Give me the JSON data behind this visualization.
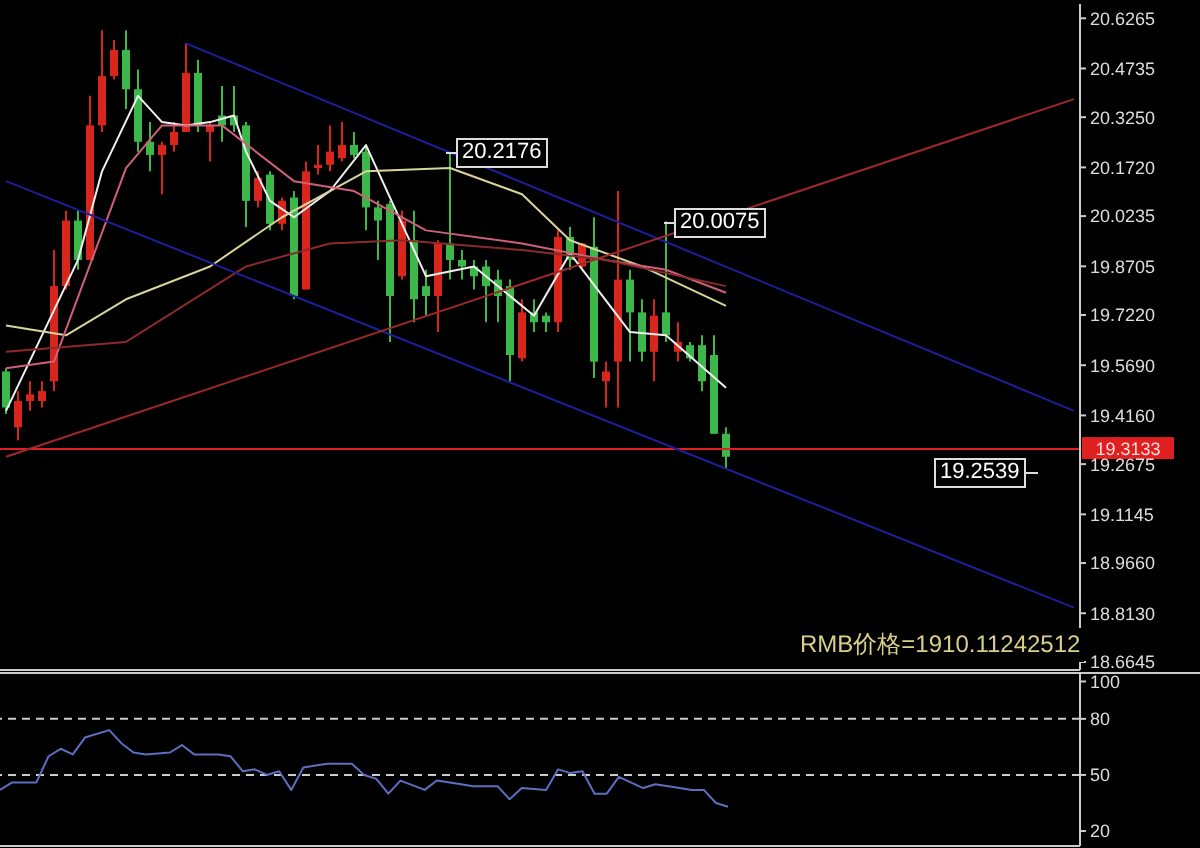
{
  "chart_data": [
    {
      "type": "candlestick",
      "categories": [
        null,
        null,
        null,
        null,
        null,
        null,
        null,
        null,
        null,
        null,
        null,
        null,
        null,
        null,
        null,
        null,
        null,
        null,
        null,
        null,
        null,
        null,
        null,
        null,
        null,
        null,
        null,
        null,
        null,
        null,
        null,
        null,
        null,
        null,
        null,
        null,
        null,
        null,
        null,
        null,
        null,
        null,
        null,
        null,
        null,
        null,
        null,
        null,
        null,
        null,
        null,
        null,
        null,
        null,
        null,
        null,
        null,
        null,
        null,
        null,
        null,
        null,
        null,
        null,
        null,
        null,
        null,
        null,
        null,
        null,
        null,
        null,
        null,
        null,
        null,
        null,
        null,
        null,
        null,
        null,
        null,
        null,
        null,
        null,
        null,
        null,
        null,
        null,
        null,
        null
      ],
      "ohlc": [
        [
          19.55,
          19.56,
          19.42,
          19.44
        ],
        [
          19.38,
          19.49,
          19.34,
          19.46
        ],
        [
          19.46,
          19.52,
          19.43,
          19.48
        ],
        [
          19.46,
          19.52,
          19.44,
          19.49
        ],
        [
          19.52,
          19.92,
          19.49,
          19.81
        ],
        [
          19.81,
          20.04,
          19.8,
          20.01
        ],
        [
          20.01,
          20.04,
          19.86,
          19.89
        ],
        [
          19.89,
          20.39,
          19.89,
          20.3
        ],
        [
          20.3,
          20.59,
          20.28,
          20.45
        ],
        [
          20.45,
          20.56,
          20.44,
          20.53
        ],
        [
          20.53,
          20.59,
          20.35,
          20.41
        ],
        [
          20.41,
          20.47,
          20.22,
          20.25
        ],
        [
          20.25,
          20.31,
          20.16,
          20.21
        ],
        [
          20.21,
          20.25,
          20.09,
          20.24
        ],
        [
          20.24,
          20.31,
          20.22,
          20.28
        ],
        [
          20.28,
          20.55,
          20.28,
          20.46
        ],
        [
          20.46,
          20.5,
          20.28,
          20.3
        ],
        [
          20.28,
          20.31,
          20.19,
          20.3
        ],
        [
          20.33,
          20.42,
          20.25,
          20.3
        ],
        [
          20.33,
          20.42,
          20.28,
          20.3
        ],
        [
          20.3,
          20.31,
          19.99,
          20.07
        ],
        [
          20.07,
          20.16,
          20.05,
          20.14
        ],
        [
          20.15,
          20.16,
          19.98,
          20.0
        ],
        [
          20.0,
          20.08,
          19.98,
          20.07
        ],
        [
          20.08,
          20.1,
          19.77,
          19.78
        ],
        [
          19.8,
          20.19,
          19.8,
          20.16
        ],
        [
          20.17,
          20.24,
          20.15,
          20.18
        ],
        [
          20.18,
          20.3,
          20.16,
          20.22
        ],
        [
          20.2,
          20.31,
          20.19,
          20.24
        ],
        [
          20.24,
          20.28,
          20.2,
          20.21
        ],
        [
          20.22,
          20.24,
          19.98,
          20.05
        ],
        [
          20.05,
          20.07,
          19.89,
          20.01
        ],
        [
          20.06,
          20.07,
          19.64,
          19.78
        ],
        [
          19.84,
          20.04,
          19.83,
          20.01
        ],
        [
          19.95,
          20.04,
          19.7,
          19.77
        ],
        [
          19.81,
          19.86,
          19.72,
          19.78
        ],
        [
          19.78,
          19.95,
          19.67,
          19.94
        ],
        [
          19.94,
          20.2176,
          19.83,
          19.89
        ],
        [
          19.89,
          19.92,
          19.83,
          19.87
        ],
        [
          19.87,
          19.89,
          19.8,
          19.84
        ],
        [
          19.87,
          19.89,
          19.7,
          19.81
        ],
        [
          19.83,
          19.86,
          19.7,
          19.78
        ],
        [
          19.81,
          19.83,
          19.52,
          19.6
        ],
        [
          19.59,
          19.77,
          19.58,
          19.73
        ],
        [
          19.73,
          19.77,
          19.67,
          19.7
        ],
        [
          19.72,
          19.73,
          19.67,
          19.7
        ],
        [
          19.7,
          19.98,
          19.67,
          19.96
        ],
        [
          19.96,
          19.99,
          19.86,
          19.89
        ],
        [
          19.87,
          19.94,
          19.86,
          19.94
        ],
        [
          19.93,
          20.02,
          19.53,
          19.58
        ],
        [
          19.52,
          19.58,
          19.44,
          19.55
        ],
        [
          19.58,
          20.1,
          19.44,
          19.83
        ],
        [
          19.83,
          19.86,
          19.58,
          19.73
        ],
        [
          19.73,
          19.77,
          19.58,
          19.61
        ],
        [
          19.61,
          19.77,
          19.52,
          19.72
        ],
        [
          19.73,
          20.0075,
          19.64,
          19.66
        ],
        [
          19.61,
          19.7,
          19.58,
          19.64
        ],
        [
          19.63,
          19.64,
          19.58,
          19.59
        ],
        [
          19.63,
          19.66,
          19.49,
          19.52
        ],
        [
          19.6,
          19.66,
          19.36,
          19.36
        ],
        [
          19.36,
          19.38,
          19.2539,
          19.29
        ],
        null,
        null,
        null,
        null,
        null,
        null,
        null,
        null,
        null,
        null,
        null,
        null,
        null,
        null,
        null,
        null,
        null,
        null,
        null,
        null,
        null,
        null,
        null,
        null,
        null,
        null,
        null,
        null,
        null
      ],
      "colors": [
        "#3cb84a",
        "#d9261c",
        "#d9261c",
        "#d9261c",
        "#d9261c",
        "#d9261c",
        "#3cb84a",
        "#d9261c",
        "#d9261c",
        "#d9261c",
        "#3cb84a",
        "#3cb84a",
        "#3cb84a",
        "#d9261c",
        "#d9261c",
        "#d9261c",
        "#3cb84a",
        "#d9261c",
        "#3cb84a",
        "#3cb84a",
        "#3cb84a",
        "#d9261c",
        "#3cb84a",
        "#d9261c",
        "#3cb84a",
        "#d9261c",
        "#d9261c",
        "#d9261c",
        "#d9261c",
        "#3cb84a",
        "#3cb84a",
        "#3cb84a",
        "#3cb84a",
        "#d9261c",
        "#3cb84a",
        "#3cb84a",
        "#d9261c",
        "#3cb84a",
        "#3cb84a",
        "#3cb84a",
        "#3cb84a",
        "#3cb84a",
        "#3cb84a",
        "#d9261c",
        "#3cb84a",
        "#3cb84a",
        "#d9261c",
        "#3cb84a",
        "#d9261c",
        "#3cb84a",
        "#d9261c",
        "#d9261c",
        "#3cb84a",
        "#3cb84a",
        "#d9261c",
        "#3cb84a",
        "#d9261c",
        "#3cb84a",
        "#3cb84a",
        "#3cb84a",
        "#3cb84a",
        null,
        null,
        null,
        null,
        null,
        null,
        null,
        null,
        null,
        null,
        null,
        null,
        null,
        null,
        null,
        null,
        null,
        null,
        null,
        null,
        null,
        null,
        null,
        null,
        null,
        null,
        null,
        null,
        null
      ],
      "series": [
        {
          "type": "line",
          "color": "#f0f0f0",
          "values": [
            19.43,
            null,
            null,
            null,
            null,
            null,
            19.89,
            null,
            20.16,
            null,
            null,
            20.39,
            null,
            20.31,
            null,
            20.3,
            null,
            20.31,
            null,
            20.33,
            20.22,
            null,
            20.07,
            null,
            20.02,
            null,
            null,
            20.1,
            null,
            null,
            20.24,
            null,
            null,
            null,
            null,
            19.84,
            null,
            null,
            null,
            19.87,
            null,
            null,
            null,
            null,
            19.72,
            null,
            null,
            19.91,
            null,
            null,
            null,
            null,
            19.67,
            null,
            null,
            19.66,
            null,
            null,
            null,
            null,
            19.5,
            null,
            null,
            null,
            null,
            null,
            null,
            null,
            null,
            null,
            null,
            null,
            null,
            null,
            null,
            null,
            null,
            null,
            null,
            null,
            null,
            null,
            null,
            null,
            null,
            null,
            null,
            null,
            null,
            null
          ]
        },
        {
          "type": "line",
          "color": "#d8d49a",
          "values": [
            19.69,
            null,
            null,
            null,
            null,
            19.66,
            null,
            null,
            null,
            null,
            19.77,
            null,
            null,
            null,
            null,
            null,
            null,
            19.87,
            null,
            null,
            null,
            null,
            null,
            20.02,
            null,
            null,
            null,
            null,
            null,
            null,
            20.16,
            null,
            null,
            null,
            null,
            null,
            null,
            20.17,
            null,
            null,
            null,
            null,
            null,
            20.09,
            null,
            null,
            null,
            19.95,
            null,
            null,
            null,
            null,
            null,
            19.87,
            null,
            null,
            null,
            null,
            null,
            null,
            19.75,
            null,
            null,
            null,
            null,
            null,
            null,
            null,
            null,
            null,
            null,
            null,
            null,
            null,
            null,
            null,
            null,
            null,
            null,
            null,
            null,
            null,
            null,
            null,
            null,
            null,
            null,
            null,
            null,
            null
          ]
        },
        {
          "type": "line",
          "color": "#d0607a",
          "values": [
            19.56,
            null,
            null,
            null,
            19.58,
            null,
            null,
            null,
            null,
            null,
            20.17,
            null,
            null,
            20.3,
            null,
            null,
            null,
            null,
            20.3,
            null,
            null,
            null,
            null,
            null,
            20.13,
            null,
            null,
            null,
            null,
            20.1,
            null,
            null,
            null,
            null,
            null,
            19.98,
            null,
            null,
            null,
            null,
            null,
            null,
            null,
            19.94,
            null,
            null,
            null,
            null,
            null,
            null,
            19.89,
            null,
            null,
            null,
            null,
            19.86,
            null,
            null,
            null,
            null,
            19.79,
            null,
            null,
            null,
            null,
            null,
            null,
            null,
            null,
            null,
            null,
            null,
            null,
            null,
            null,
            null,
            null,
            null,
            null,
            null,
            null,
            null,
            null,
            null,
            null,
            null,
            null,
            null,
            null,
            null
          ]
        },
        {
          "type": "line",
          "color": "#8a2a2a",
          "values": [
            19.61,
            null,
            null,
            null,
            null,
            null,
            null,
            null,
            null,
            null,
            19.64,
            null,
            null,
            null,
            null,
            null,
            null,
            null,
            null,
            null,
            19.87,
            null,
            null,
            null,
            null,
            null,
            null,
            19.94,
            null,
            null,
            null,
            null,
            null,
            19.95,
            null,
            null,
            null,
            null,
            null,
            null,
            null,
            null,
            null,
            19.92,
            null,
            null,
            null,
            null,
            null,
            null,
            19.89,
            null,
            null,
            null,
            null,
            null,
            null,
            null,
            null,
            null,
            19.81,
            null,
            null,
            null,
            null,
            null,
            null,
            null,
            null,
            null,
            null,
            null,
            null,
            null,
            null,
            null,
            null,
            null,
            null,
            null,
            null,
            null,
            null,
            null,
            null,
            null,
            null,
            null,
            null,
            null
          ]
        },
        {
          "type": "line",
          "color": "#1e1e9c",
          "values": [
            null,
            null,
            null,
            null,
            null,
            null,
            null,
            null,
            null,
            null,
            null,
            null,
            null,
            null,
            null,
            20.55,
            null,
            null,
            null,
            null,
            null,
            null,
            null,
            null,
            null,
            null,
            null,
            null,
            null,
            null,
            null,
            null,
            null,
            null,
            null,
            null,
            null,
            null,
            null,
            null,
            null,
            null,
            null,
            null,
            null,
            null,
            null,
            null,
            null,
            null,
            null,
            null,
            null,
            null,
            null,
            null,
            null,
            null,
            null,
            null,
            null,
            null,
            null,
            null,
            null,
            null,
            null,
            null,
            null,
            null,
            null,
            null,
            null,
            null,
            null,
            null,
            null,
            null,
            null,
            null,
            null,
            null,
            null,
            null,
            null,
            null,
            null,
            null,
            null,
            19.43
          ]
        },
        {
          "type": "line",
          "color": "#1e1e9c",
          "values": [
            20.13,
            null,
            null,
            null,
            null,
            null,
            null,
            null,
            null,
            null,
            null,
            null,
            null,
            null,
            null,
            null,
            null,
            null,
            null,
            null,
            null,
            null,
            null,
            null,
            null,
            null,
            null,
            null,
            null,
            null,
            null,
            null,
            null,
            null,
            null,
            null,
            null,
            null,
            null,
            null,
            null,
            null,
            null,
            null,
            null,
            null,
            null,
            null,
            null,
            null,
            null,
            null,
            null,
            null,
            null,
            null,
            null,
            null,
            null,
            null,
            null,
            null,
            null,
            null,
            null,
            null,
            null,
            null,
            null,
            null,
            null,
            null,
            null,
            null,
            null,
            null,
            null,
            null,
            null,
            null,
            null,
            null,
            null,
            null,
            null,
            null,
            null,
            null,
            null,
            18.83
          ]
        },
        {
          "type": "line",
          "color": "#a02828",
          "values": [
            19.29,
            null,
            null,
            null,
            null,
            null,
            null,
            null,
            null,
            null,
            null,
            null,
            null,
            null,
            null,
            null,
            null,
            null,
            null,
            null,
            null,
            null,
            null,
            null,
            null,
            null,
            null,
            null,
            null,
            null,
            null,
            null,
            null,
            null,
            null,
            null,
            null,
            null,
            null,
            null,
            null,
            null,
            null,
            null,
            null,
            null,
            null,
            null,
            null,
            null,
            null,
            null,
            null,
            null,
            null,
            null,
            null,
            null,
            null,
            null,
            null,
            null,
            null,
            null,
            null,
            null,
            null,
            null,
            null,
            null,
            null,
            null,
            null,
            null,
            null,
            null,
            null,
            null,
            null,
            null,
            null,
            null,
            null,
            null,
            null,
            null,
            null,
            null,
            null,
            20.38
          ]
        }
      ],
      "ylim": [
        18.64,
        20.67
      ],
      "yticks": [
        20.6265,
        20.4735,
        {
          "value": 20.325,
          "label": "20.3250"
        },
        {
          "value": 20.172,
          "label": "20.1720"
        },
        20.0235,
        19.8705,
        {
          "value": 19.722,
          "label": "19.7220"
        },
        {
          "value": 19.569,
          "label": "19.5690"
        },
        {
          "value": 19.416,
          "label": "19.4160"
        },
        19.2675,
        19.1145,
        {
          "value": 18.966,
          "label": "18.9660"
        },
        {
          "value": 18.813,
          "label": "18.8130"
        },
        18.6645
      ],
      "ref_lines": [
        {
          "axis": "y",
          "value": 19.3133,
          "label": "19.3133",
          "color": "#e02020"
        }
      ],
      "annotations": [
        "20.2176",
        "20.0075",
        "19.2539",
        "RMB价格=1910.11242512"
      ],
      "tick_labels": "y"
    },
    {
      "type": "line",
      "categories": [
        null,
        null,
        null,
        null,
        null,
        null,
        null,
        null,
        null,
        null,
        null,
        null,
        null,
        null,
        null,
        null,
        null,
        null,
        null,
        null,
        null,
        null,
        null,
        null,
        null,
        null,
        null,
        null,
        null,
        null,
        null,
        null,
        null,
        null,
        null,
        null,
        null,
        null,
        null,
        null,
        null,
        null,
        null,
        null,
        null,
        null,
        null,
        null,
        null,
        null,
        null,
        null,
        null,
        null,
        null,
        null,
        null,
        null,
        null,
        null,
        null,
        null,
        null,
        null,
        null,
        null,
        null,
        null,
        null,
        null,
        null,
        null,
        null,
        null,
        null,
        null,
        null,
        null,
        null,
        null,
        null,
        null,
        null,
        null,
        null,
        null,
        null,
        null,
        null,
        null
      ],
      "series": [
        {
          "color": "#5c6fc0",
          "values": [
            42,
            46,
            null,
            46,
            60,
            64,
            61,
            70,
            null,
            74,
            67,
            62,
            61,
            null,
            62,
            66,
            61,
            null,
            61,
            60,
            52,
            53,
            50,
            52,
            42,
            54,
            55,
            56,
            null,
            56,
            50,
            48,
            40,
            47,
            null,
            42,
            47,
            null,
            45,
            44,
            null,
            44,
            37,
            43,
            null,
            42,
            53,
            51,
            52,
            40,
            40,
            49,
            null,
            43,
            45,
            null,
            43,
            42,
            42,
            35,
            33,
            null,
            null,
            null,
            null,
            null,
            null,
            null,
            null,
            null,
            null,
            null,
            null,
            null,
            null,
            null,
            null,
            null,
            null,
            null,
            null,
            null,
            null,
            null,
            null,
            null,
            null,
            null,
            null,
            null
          ]
        }
      ],
      "ylim": [
        12,
        104
      ],
      "yticks": [
        100,
        80,
        50,
        20
      ],
      "ref_lines": [
        {
          "axis": "y",
          "value": 80,
          "color": "#cccccc",
          "line_style": "dashed"
        },
        {
          "axis": "y",
          "value": 50,
          "color": "#cccccc",
          "line_style": "dashed"
        }
      ],
      "tick_labels": "y"
    }
  ]
}
